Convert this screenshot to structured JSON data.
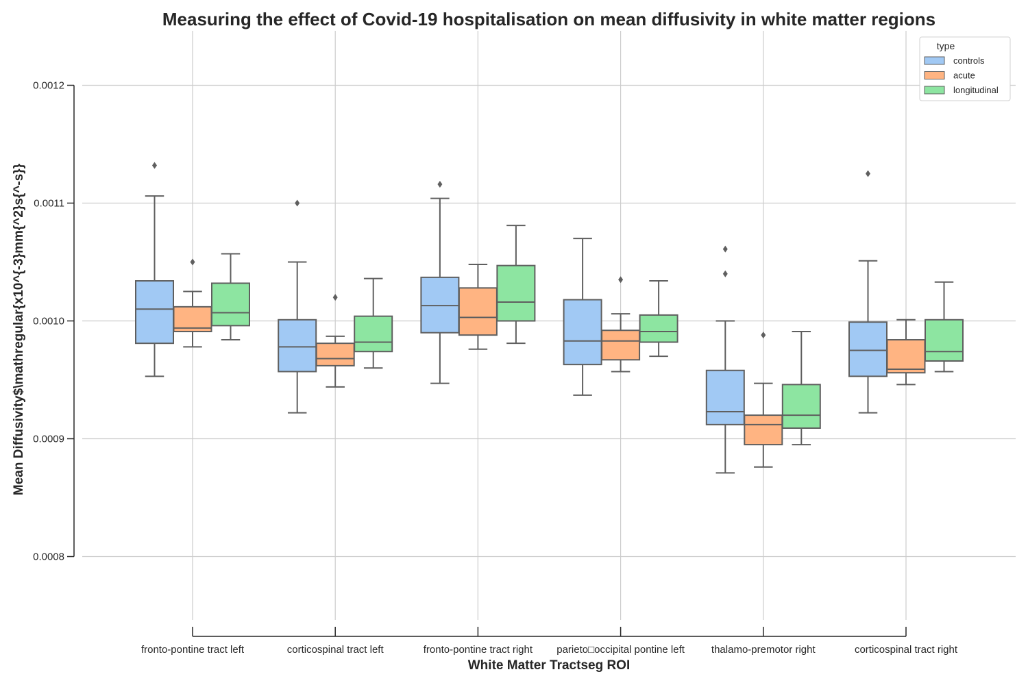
{
  "chart_data": {
    "type": "box",
    "title": "Measuring the effect of Covid-19 hospitalisation on mean diffusivity in white matter regions",
    "xlabel": "White Matter Tractseg ROI",
    "ylabel": "Mean Diffusivity$\\mathregular{x10^{-3}mm{^2}s{^-s}}",
    "ylim": [
      0.00074,
      0.00124
    ],
    "yticks": [
      "0.0008",
      "0.0009",
      "0.0010",
      "0.0011",
      "0.0012"
    ],
    "grid": true,
    "legend": {
      "title": "type",
      "placement": "top-right"
    },
    "categories": [
      "fronto-pontine tract left",
      "corticospinal tract left",
      "fronto-pontine tract right",
      "parieto□occipital pontine left",
      "thalamo-premotor right",
      "corticospinal tract right"
    ],
    "series": [
      {
        "name": "controls",
        "color": "#a1c9f4",
        "boxes": [
          {
            "whislo": 0.000953,
            "q1": 0.000981,
            "med": 0.00101,
            "q3": 0.001034,
            "whishi": 0.001106,
            "fliers": [
              0.001132
            ]
          },
          {
            "whislo": 0.000922,
            "q1": 0.000957,
            "med": 0.000978,
            "q3": 0.001001,
            "whishi": 0.00105,
            "fliers": [
              0.0011
            ]
          },
          {
            "whislo": 0.000947,
            "q1": 0.00099,
            "med": 0.001013,
            "q3": 0.001037,
            "whishi": 0.001104,
            "fliers": [
              0.001116
            ]
          },
          {
            "whislo": 0.000937,
            "q1": 0.000963,
            "med": 0.000983,
            "q3": 0.001018,
            "whishi": 0.00107,
            "fliers": []
          },
          {
            "whislo": 0.000871,
            "q1": 0.000912,
            "med": 0.000923,
            "q3": 0.000958,
            "whishi": 0.001,
            "fliers": [
              0.001061,
              0.00104
            ]
          },
          {
            "whislo": 0.000922,
            "q1": 0.000953,
            "med": 0.000975,
            "q3": 0.000999,
            "whishi": 0.001051,
            "fliers": [
              0.001125
            ]
          }
        ]
      },
      {
        "name": "acute",
        "color": "#ffb482",
        "boxes": [
          {
            "whislo": 0.000978,
            "q1": 0.000991,
            "med": 0.000994,
            "q3": 0.001012,
            "whishi": 0.001025,
            "fliers": [
              0.00105
            ]
          },
          {
            "whislo": 0.000944,
            "q1": 0.000962,
            "med": 0.000968,
            "q3": 0.000981,
            "whishi": 0.000987,
            "fliers": [
              0.00102
            ]
          },
          {
            "whislo": 0.000976,
            "q1": 0.000988,
            "med": 0.001003,
            "q3": 0.001028,
            "whishi": 0.001048,
            "fliers": []
          },
          {
            "whislo": 0.000957,
            "q1": 0.000967,
            "med": 0.000983,
            "q3": 0.000992,
            "whishi": 0.001006,
            "fliers": [
              0.001035
            ]
          },
          {
            "whislo": 0.000876,
            "q1": 0.000895,
            "med": 0.000912,
            "q3": 0.00092,
            "whishi": 0.000947,
            "fliers": [
              0.000988
            ]
          },
          {
            "whislo": 0.000946,
            "q1": 0.000956,
            "med": 0.000959,
            "q3": 0.000984,
            "whishi": 0.001001,
            "fliers": []
          }
        ]
      },
      {
        "name": "longitudinal",
        "color": "#8de5a1",
        "boxes": [
          {
            "whislo": 0.000984,
            "q1": 0.000996,
            "med": 0.001007,
            "q3": 0.001032,
            "whishi": 0.001057,
            "fliers": []
          },
          {
            "whislo": 0.00096,
            "q1": 0.000974,
            "med": 0.000982,
            "q3": 0.001004,
            "whishi": 0.001036,
            "fliers": []
          },
          {
            "whislo": 0.000981,
            "q1": 0.001,
            "med": 0.001016,
            "q3": 0.001047,
            "whishi": 0.001081,
            "fliers": []
          },
          {
            "whislo": 0.00097,
            "q1": 0.000982,
            "med": 0.000991,
            "q3": 0.001005,
            "whishi": 0.001034,
            "fliers": []
          },
          {
            "whislo": 0.000895,
            "q1": 0.000909,
            "med": 0.00092,
            "q3": 0.000946,
            "whishi": 0.000991,
            "fliers": []
          },
          {
            "whislo": 0.000957,
            "q1": 0.000966,
            "med": 0.000974,
            "q3": 0.001001,
            "whishi": 0.001033,
            "fliers": []
          }
        ]
      }
    ]
  }
}
